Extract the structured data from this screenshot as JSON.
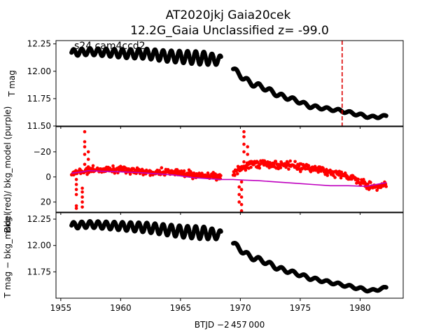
{
  "figure": {
    "title_line1": "AT2020jkj  Gaia20cek",
    "title_line2": "12.2G_Gaia Unclassified z= -99.0",
    "xlabel": "BTJD −2 457 000"
  },
  "chart_data": [
    {
      "type": "scatter",
      "panel": "top",
      "annotation": "s24 cam4ccd2",
      "ylabel": "T mag",
      "xlim": [
        1954.6,
        1983.6
      ],
      "ylim": [
        12.28,
        11.5
      ],
      "y_inverted": true,
      "xticks": [
        1955,
        1960,
        1965,
        1970,
        1975,
        1980
      ],
      "yticks": [
        "11.50",
        "11.75",
        "12.00",
        "12.25"
      ],
      "ytick_values": [
        11.5,
        11.75,
        12.0,
        12.25
      ],
      "vline": {
        "x": 1978.5,
        "color": "#dd0000",
        "style": "dashed"
      },
      "series": [
        {
          "color": "#000000",
          "marker": "circle",
          "segments": [
            {
              "x_start": 1955.9,
              "x_end": 1968.4,
              "mean": [
                12.17,
                12.18,
                12.17,
                12.16,
                12.16,
                12.14,
                12.13,
                12.12,
                12.1
              ],
              "osc_amp": [
                0.03,
                0.03,
                0.035,
                0.04,
                0.045,
                0.05,
                0.055,
                0.06,
                0.04
              ],
              "period": 0.68
            },
            {
              "x_start": 1969.4,
              "x_end": 1982.2,
              "mean": [
                12.02,
                11.9,
                11.85,
                11.78,
                11.74,
                11.68,
                11.66,
                11.64,
                11.61,
                11.58,
                11.59
              ],
              "osc_amp": [
                0.02,
                0.025,
                0.02,
                0.02,
                0.015,
                0.015,
                0.012,
                0.012,
                0.012,
                0.012,
                0.01
              ],
              "period": 0.95
            }
          ]
        }
      ]
    },
    {
      "type": "scatter",
      "panel": "middle",
      "ylabel": "Bkg (red)/ bkg_model (purple)",
      "xlim": [
        1954.6,
        1983.6
      ],
      "ylim": [
        -40,
        28
      ],
      "yticks": [
        "20",
        "0",
        "−20"
      ],
      "ytick_values": [
        20,
        0,
        -20
      ],
      "series": [
        {
          "name": "Bkg",
          "color": "#ff0000",
          "marker": "circle",
          "segments": [
            {
              "x_start": 1955.9,
              "x_end": 1968.4,
              "mean": [
                -3,
                -5,
                -6,
                -6,
                -5,
                -4,
                -4,
                -3,
                -2,
                -1,
                0
              ],
              "scatter": 2.6
            },
            {
              "x_start": 1969.4,
              "x_end": 1982.2,
              "mean": [
                -3,
                -9,
                -11,
                -10,
                -9,
                -8,
                -6,
                -4,
                -1,
                3,
                8,
                6
              ],
              "scatter": 3.0
            }
          ],
          "spikes": [
            {
              "x": 1956.3,
              "ys": [
                25,
                23,
                14,
                10,
                6,
                2
              ]
            },
            {
              "x": 1956.8,
              "ys": [
                24,
                20,
                16,
                12,
                9
              ]
            },
            {
              "x": 1957.0,
              "ys": [
                -10,
                -18,
                -24,
                -28,
                -36
              ]
            },
            {
              "x": 1957.3,
              "ys": [
                -8,
                -14,
                -20
              ]
            },
            {
              "x": 1969.9,
              "ys": [
                20,
                14,
                8
              ]
            },
            {
              "x": 1970.1,
              "ys": [
                27,
                22,
                16,
                10,
                4
              ]
            },
            {
              "x": 1970.3,
              "ys": [
                -12,
                -20,
                -26,
                -32,
                -36
              ]
            },
            {
              "x": 1970.6,
              "ys": [
                -10,
                -18,
                -24
              ]
            }
          ]
        },
        {
          "name": "bkg_model",
          "color": "#bf00bf",
          "line": [
            [
              1955.9,
              -3
            ],
            [
              1956.8,
              -4
            ],
            [
              1957.3,
              -5
            ],
            [
              1958.5,
              -4.5
            ],
            [
              1960,
              -4
            ],
            [
              1961.5,
              -3.5
            ],
            [
              1963,
              -2.5
            ],
            [
              1964.5,
              -1.5
            ],
            [
              1966,
              0.5
            ],
            [
              1967.5,
              1.5
            ],
            [
              1968.4,
              2
            ],
            [
              1969.4,
              2
            ],
            [
              1970.3,
              2.5
            ],
            [
              1971.5,
              3
            ],
            [
              1973,
              4
            ],
            [
              1974.5,
              5
            ],
            [
              1976,
              6
            ],
            [
              1977.5,
              7
            ],
            [
              1979,
              7
            ],
            [
              1980.5,
              7.5
            ],
            [
              1982.2,
              4.5
            ]
          ]
        }
      ]
    },
    {
      "type": "scatter",
      "panel": "bottom",
      "ylabel": "T mag − bkg_model",
      "xlim": [
        1954.6,
        1983.6
      ],
      "ylim": [
        12.31,
        11.5
      ],
      "y_inverted": true,
      "yticks": [
        "11.75",
        "12.00",
        "12.25"
      ],
      "ytick_values": [
        11.75,
        12.0,
        12.25
      ],
      "series": [
        {
          "color": "#000000",
          "marker": "circle",
          "segments": [
            {
              "x_start": 1955.9,
              "x_end": 1968.4,
              "mean": [
                12.19,
                12.2,
                12.19,
                12.18,
                12.17,
                12.15,
                12.13,
                12.12,
                12.1
              ],
              "osc_amp": [
                0.03,
                0.03,
                0.035,
                0.04,
                0.045,
                0.05,
                0.055,
                0.06,
                0.04
              ],
              "period": 0.68
            },
            {
              "x_start": 1969.4,
              "x_end": 1982.2,
              "mean": [
                12.02,
                11.9,
                11.85,
                11.78,
                11.74,
                11.69,
                11.66,
                11.63,
                11.6,
                11.57,
                11.6
              ],
              "osc_amp": [
                0.02,
                0.025,
                0.02,
                0.02,
                0.015,
                0.015,
                0.012,
                0.012,
                0.012,
                0.012,
                0.01
              ],
              "period": 0.95
            }
          ]
        }
      ]
    }
  ]
}
